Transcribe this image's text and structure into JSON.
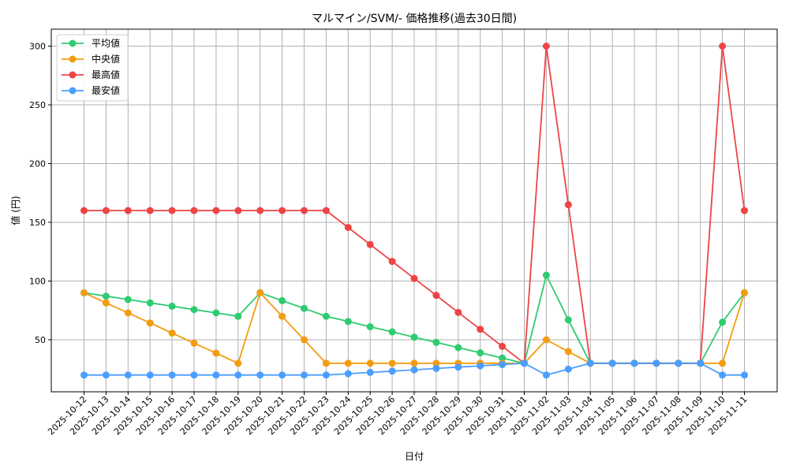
{
  "chart_data": {
    "type": "line",
    "title": "マルマイン/SVM/- 価格推移(過去30日間)",
    "xlabel": "日付",
    "ylabel": "値 (円)",
    "ylim": [
      9,
      314
    ],
    "yticks": [
      50,
      100,
      150,
      200,
      250,
      300
    ],
    "grid": true,
    "legend_position": "upper left",
    "x": [
      "2025-10-12",
      "2025-10-13",
      "2025-10-14",
      "2025-10-15",
      "2025-10-16",
      "2025-10-17",
      "2025-10-18",
      "2025-10-19",
      "2025-10-20",
      "2025-10-21",
      "2025-10-22",
      "2025-10-23",
      "2025-10-24",
      "2025-10-25",
      "2025-10-26",
      "2025-10-27",
      "2025-10-28",
      "2025-10-29",
      "2025-10-30",
      "2025-10-31",
      "2025-11-01",
      "2025-11-02",
      "2025-11-03",
      "2025-11-04",
      "2025-11-05",
      "2025-11-06",
      "2025-11-07",
      "2025-11-08",
      "2025-11-09",
      "2025-11-10",
      "2025-11-11"
    ],
    "series": [
      {
        "name": "平均値",
        "color": "#2ecc71",
        "values": [
          90,
          87.1,
          84.3,
          81.4,
          78.6,
          75.7,
          72.9,
          70,
          90,
          83.3,
          76.7,
          70,
          65.6,
          61.1,
          56.7,
          52.2,
          47.8,
          43.3,
          38.9,
          34.4,
          30,
          105,
          67,
          30,
          30,
          30,
          30,
          30,
          30,
          65,
          90
        ]
      },
      {
        "name": "中央値",
        "color": "#f39c12",
        "values": [
          90,
          81.4,
          72.9,
          64.3,
          55.7,
          47.1,
          38.6,
          30,
          90,
          70,
          50,
          30,
          30,
          30,
          30,
          30,
          30,
          30,
          30,
          30,
          30,
          50,
          40,
          30,
          30,
          30,
          30,
          30,
          30,
          30,
          90
        ]
      },
      {
        "name": "最高値",
        "color": "#ef4444",
        "values": [
          160,
          160,
          160,
          160,
          160,
          160,
          160,
          160,
          160,
          160,
          160,
          160,
          145.6,
          131.1,
          116.7,
          102.2,
          87.8,
          73.3,
          58.9,
          44.4,
          30,
          300,
          165,
          30,
          30,
          30,
          30,
          30,
          30,
          300,
          160
        ]
      },
      {
        "name": "最安値",
        "color": "#4a9eff",
        "values": [
          20,
          20,
          20,
          20,
          20,
          20,
          20,
          20,
          20,
          20,
          20,
          20,
          21.1,
          22.2,
          23.3,
          24.4,
          25.6,
          26.7,
          27.8,
          28.9,
          30,
          20,
          25,
          30,
          30,
          30,
          30,
          30,
          30,
          20,
          20
        ]
      }
    ]
  }
}
